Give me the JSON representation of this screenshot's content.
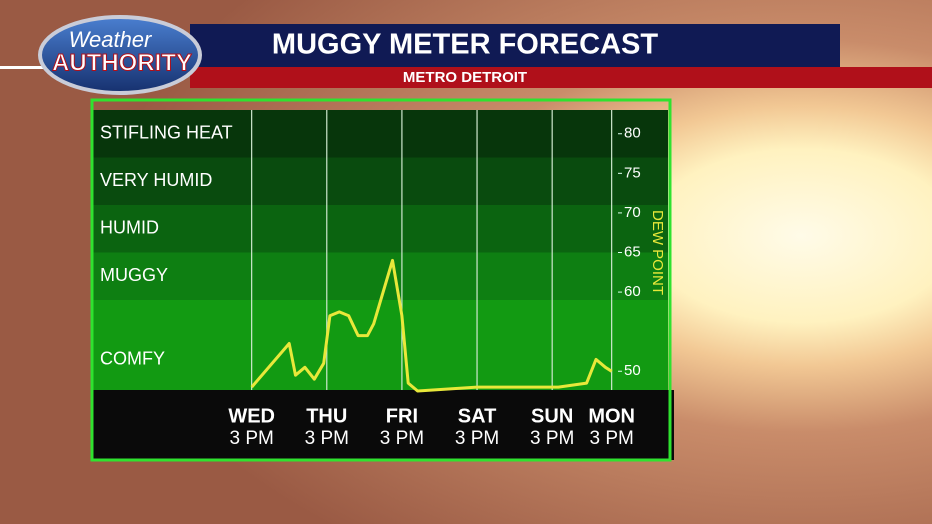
{
  "logo": {
    "line1": "Weather",
    "line2": "AUTHORITY"
  },
  "chart_data": {
    "type": "line",
    "title": "MUGGY METER FORECAST",
    "subtitle": "METRO DETROIT",
    "y_label": "DEW POINT",
    "color": "#e8e83a",
    "x": [
      0,
      12,
      14,
      17,
      20,
      23,
      25,
      28,
      31,
      34,
      37,
      39,
      45,
      48,
      50,
      53,
      72,
      98,
      107,
      110,
      113,
      115
    ],
    "values": [
      48,
      53.5,
      49.5,
      50.5,
      49,
      51,
      57,
      57.5,
      57,
      54.5,
      54.5,
      56,
      64,
      57,
      48.5,
      47.5,
      48,
      48,
      48.5,
      51.5,
      50.5,
      50
    ],
    "xlim": [
      -51,
      133
    ],
    "xticks": [
      {
        "value": 0,
        "label": "WED",
        "time": "3 PM"
      },
      {
        "value": 24,
        "label": "THU",
        "time": "3 PM"
      },
      {
        "value": 48,
        "label": "FRI",
        "time": "3 PM"
      },
      {
        "value": 72,
        "label": "SAT",
        "time": "3 PM"
      },
      {
        "value": 96,
        "label": "SUN",
        "time": "3 PM"
      },
      {
        "value": 115,
        "label": "MON",
        "time": "3 PM"
      }
    ],
    "ylim": [
      47,
      83
    ],
    "yticks": [
      50,
      60,
      65,
      70,
      75,
      80
    ],
    "bands": [
      {
        "label": "COMFY",
        "from": 47,
        "to": 59,
        "color": "#129a12"
      },
      {
        "label": "MUGGY",
        "from": 59,
        "to": 65,
        "color": "#0e7f12"
      },
      {
        "label": "HUMID",
        "from": 65,
        "to": 71,
        "color": "#0b6410"
      },
      {
        "label": "VERY HUMID",
        "from": 71,
        "to": 77,
        "color": "#094b0e"
      },
      {
        "label": "STIFLING HEAT",
        "from": 77,
        "to": 83,
        "color": "#07360b"
      }
    ]
  }
}
